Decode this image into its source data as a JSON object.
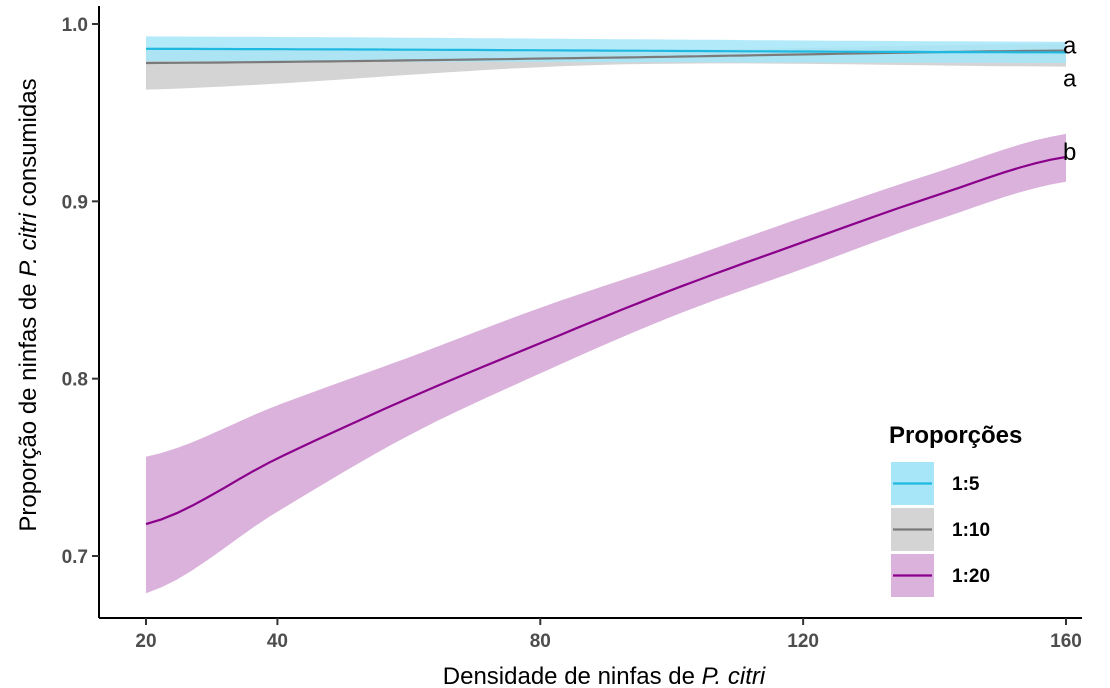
{
  "chart_data": {
    "type": "line",
    "xlabel_parts": [
      "Densidade de ninfas de ",
      "P. citri"
    ],
    "ylabel_parts": [
      "Proporção de ninfas de ",
      "P. citri",
      " consumidas"
    ],
    "xlim": [
      20,
      160
    ],
    "ylim": [
      0.68,
      1.0
    ],
    "x_ticks": [
      20,
      40,
      80,
      120,
      160
    ],
    "y_ticks": [
      0.7,
      0.8,
      0.9,
      1.0
    ],
    "y_tick_labels": [
      "0.7",
      "0.8",
      "0.9",
      "1.0"
    ],
    "grid": false,
    "legend": {
      "title": "Proporções",
      "position": "bottom-right"
    },
    "series": [
      {
        "name": "1:5",
        "color": "#1fb8e0",
        "fill": "#a6e6f8",
        "x": [
          20,
          160
        ],
        "y": [
          0.986,
          0.984
        ],
        "lower": [
          0.979,
          0.978
        ],
        "upper": [
          0.993,
          0.99
        ],
        "letter": "a"
      },
      {
        "name": "1:10",
        "color": "#7a7a7a",
        "fill": "#d4d4d4",
        "x": [
          20,
          90,
          160
        ],
        "y": [
          0.978,
          0.981,
          0.985
        ],
        "lower": [
          0.963,
          0.977,
          0.976
        ],
        "upper": [
          0.987,
          0.985,
          0.989
        ],
        "letter": "a"
      },
      {
        "name": "1:20",
        "color": "#8b008b",
        "fill": "#dab2dc",
        "x": [
          20,
          40,
          60,
          80,
          100,
          120,
          140,
          160
        ],
        "y": [
          0.718,
          0.755,
          0.789,
          0.82,
          0.85,
          0.877,
          0.903,
          0.925
        ],
        "lower": [
          0.679,
          0.725,
          0.768,
          0.803,
          0.835,
          0.862,
          0.889,
          0.911
        ],
        "upper": [
          0.756,
          0.785,
          0.812,
          0.84,
          0.865,
          0.891,
          0.916,
          0.938
        ],
        "letter": "b"
      }
    ]
  }
}
